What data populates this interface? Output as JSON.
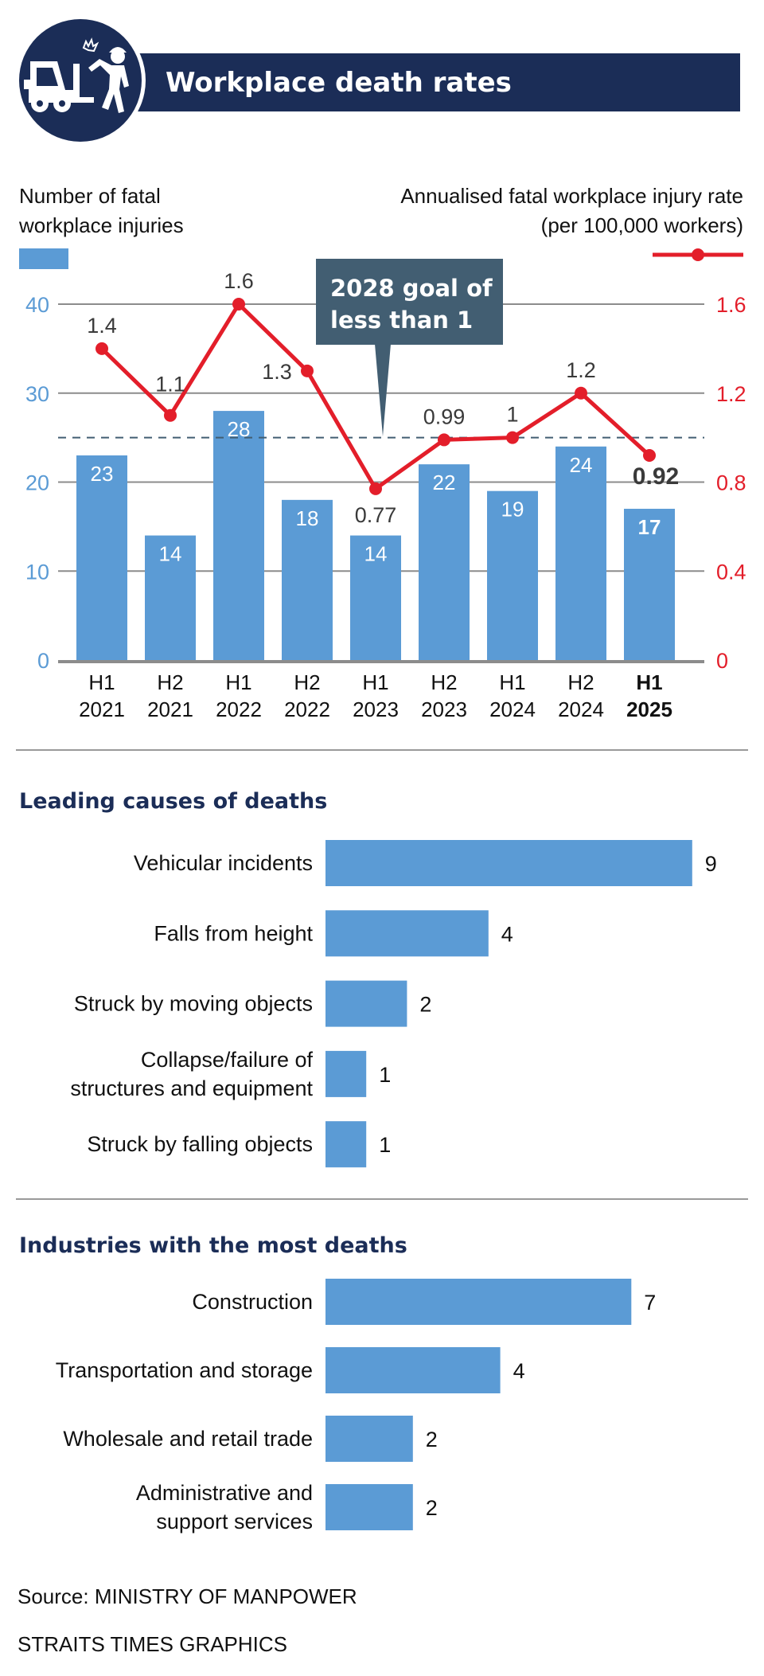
{
  "header": {
    "title": "Workplace death rates",
    "icon": "forklift-worker-accident-icon",
    "colors": {
      "navy": "#1b2d57"
    }
  },
  "colors": {
    "bar": "#5b9bd5",
    "line": "#e31e2a",
    "left_axis": "#5b9bd5",
    "right_axis": "#e31e2a",
    "heading": "#1b2d57",
    "callout": "#425e72",
    "grid": "#8c8c8c"
  },
  "chart_data": [
    {
      "type": "bar+line",
      "title": "Workplace death rates",
      "categories": [
        [
          "H1",
          "2021"
        ],
        [
          "H2",
          "2021"
        ],
        [
          "H1",
          "2022"
        ],
        [
          "H2",
          "2022"
        ],
        [
          "H1",
          "2023"
        ],
        [
          "H2",
          "2023"
        ],
        [
          "H1",
          "2024"
        ],
        [
          "H2",
          "2024"
        ],
        [
          "H1",
          "2025"
        ]
      ],
      "highlight_index": 8,
      "series": [
        {
          "name": "Number of fatal workplace injuries",
          "type": "bar",
          "axis": "left",
          "values": [
            23,
            14,
            28,
            18,
            14,
            22,
            19,
            24,
            17
          ],
          "labels": [
            "23",
            "14",
            "28",
            "18",
            "14",
            "22",
            "19",
            "24",
            "17"
          ]
        },
        {
          "name": "Annualised fatal workplace injury rate (per 100,000 workers)",
          "type": "line",
          "axis": "right",
          "values": [
            1.4,
            1.1,
            1.6,
            1.3,
            0.77,
            0.99,
            1.0,
            1.2,
            0.92
          ],
          "labels": [
            "1.4",
            "1.1",
            "1.6",
            "1.3",
            "0.77",
            "0.99",
            "1",
            "1.2",
            "0.92"
          ]
        }
      ],
      "left_axis": {
        "label_lines": [
          "Number of fatal",
          "workplace injuries"
        ],
        "ticks": [
          0,
          10,
          20,
          30,
          40
        ],
        "ylim": [
          0,
          40
        ]
      },
      "right_axis": {
        "label_lines": [
          "Annualised fatal workplace injury rate",
          "(per 100,000 workers)"
        ],
        "ticks": [
          "0",
          "0.4",
          "0.8",
          "1.2",
          "1.6"
        ],
        "tick_values": [
          0,
          0.4,
          0.8,
          1.2,
          1.6
        ],
        "ylim": [
          0,
          1.6
        ]
      },
      "reference_line": {
        "value": 1.0,
        "axis": "right",
        "style": "dashed"
      },
      "annotation": {
        "lines": [
          "2028 goal of",
          "less than 1"
        ]
      },
      "grid": true,
      "legend": "top"
    },
    {
      "type": "bar",
      "orientation": "horizontal",
      "title": "Leading causes of deaths",
      "categories": [
        [
          "Vehicular incidents"
        ],
        [
          "Falls from height"
        ],
        [
          "Struck by moving objects"
        ],
        [
          "Collapse/failure of",
          "structures and equipment"
        ],
        [
          "Struck by falling objects"
        ]
      ],
      "values": [
        9,
        4,
        2,
        1,
        1
      ]
    },
    {
      "type": "bar",
      "orientation": "horizontal",
      "title": "Industries with the most deaths",
      "categories": [
        [
          "Construction"
        ],
        [
          "Transportation and storage"
        ],
        [
          "Wholesale and retail trade"
        ],
        [
          "Administrative and",
          "support services"
        ]
      ],
      "values": [
        7,
        4,
        2,
        2
      ]
    }
  ],
  "footer": {
    "source": "Source: MINISTRY OF MANPOWER",
    "credit": "STRAITS TIMES GRAPHICS"
  }
}
